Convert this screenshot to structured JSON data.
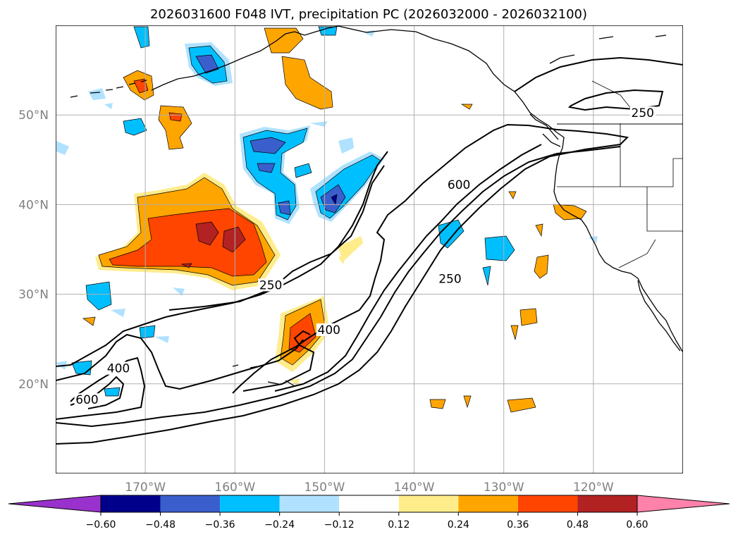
{
  "title": "2026031600 F048 IVT, precipitation PC (2026032000 - 2026032100)",
  "map": {
    "projection": "equirectangular",
    "lon_range": [
      -180,
      -110
    ],
    "lat_range": [
      10,
      60
    ],
    "lat_ticks": [
      {
        "value": 20,
        "label": "20°N"
      },
      {
        "value": 30,
        "label": "30°N"
      },
      {
        "value": 40,
        "label": "40°N"
      },
      {
        "value": 50,
        "label": "50°N"
      }
    ],
    "lon_ticks": [
      {
        "value": -170,
        "label": "170°W"
      },
      {
        "value": -160,
        "label": "160°W"
      },
      {
        "value": -150,
        "label": "150°W"
      },
      {
        "value": -140,
        "label": "140°W"
      },
      {
        "value": -130,
        "label": "130°W"
      },
      {
        "value": -120,
        "label": "120°W"
      }
    ],
    "ivt_contour_labels": [
      {
        "text": "250",
        "lon": -114.5,
        "lat": 50.0
      },
      {
        "text": "600",
        "lon": -135.0,
        "lat": 42.0
      },
      {
        "text": "250",
        "lon": -136.0,
        "lat": 31.5
      },
      {
        "text": "250",
        "lon": -156.0,
        "lat": 30.8
      },
      {
        "text": "400",
        "lon": -149.5,
        "lat": 25.8
      },
      {
        "text": "400",
        "lon": -173.0,
        "lat": 21.5
      },
      {
        "text": "600",
        "lon": -176.5,
        "lat": 18.0
      }
    ]
  },
  "colorbar": {
    "levels": [
      "-0.60",
      "-0.48",
      "-0.36",
      "-0.24",
      "-0.12",
      "0.12",
      "0.24",
      "0.36",
      "0.48",
      "0.60"
    ],
    "colors": [
      "#9932cc",
      "#00008b",
      "#3a5fcd",
      "#00bfff",
      "#b0e2ff",
      "#ffffff",
      "#ffec8b",
      "#ffa500",
      "#ff4500",
      "#b22222",
      "#ff82ab"
    ],
    "extend": "both"
  },
  "colors": {
    "land_outline": "#000000",
    "grid": "#b0b0b0",
    "tick_label": "#808080"
  }
}
